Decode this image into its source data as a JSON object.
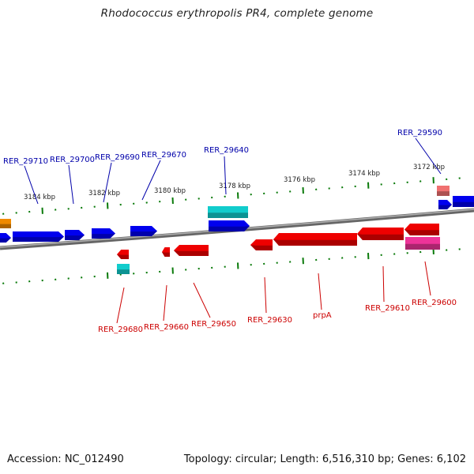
{
  "title": "Rhodococcus erythropolis PR4, complete genome",
  "footer": {
    "accession": "Accession: NC_012490",
    "topology": "Topology: circular; Length: 6,516,310 bp; Genes: 6,102"
  },
  "colors": {
    "forward": "#0000ee",
    "reverse": "#ee0000",
    "backbone": "#808080",
    "tick": "#0a7a0a",
    "label_forward": "#0000aa",
    "label_reverse": "#cc0000",
    "cyan": "#11cccc",
    "orange": "#f08a00",
    "pink": "#ee3399",
    "salmon": "#f07070"
  },
  "scale_labels": [
    "3184 kbp",
    "3182 kbp",
    "3180 kbp",
    "3178 kbp",
    "3176 kbp",
    "3174 kbp",
    "3172 kbp"
  ],
  "gene_labels_top": [
    "RER_29710",
    "RER_29700",
    "RER_29690",
    "RER_29670",
    "RER_29640",
    "RER_29590"
  ],
  "gene_labels_bottom": [
    "RER_29680",
    "RER_29660",
    "RER_29650",
    "RER_29630",
    "prpA",
    "RER_29610",
    "RER_29600"
  ]
}
